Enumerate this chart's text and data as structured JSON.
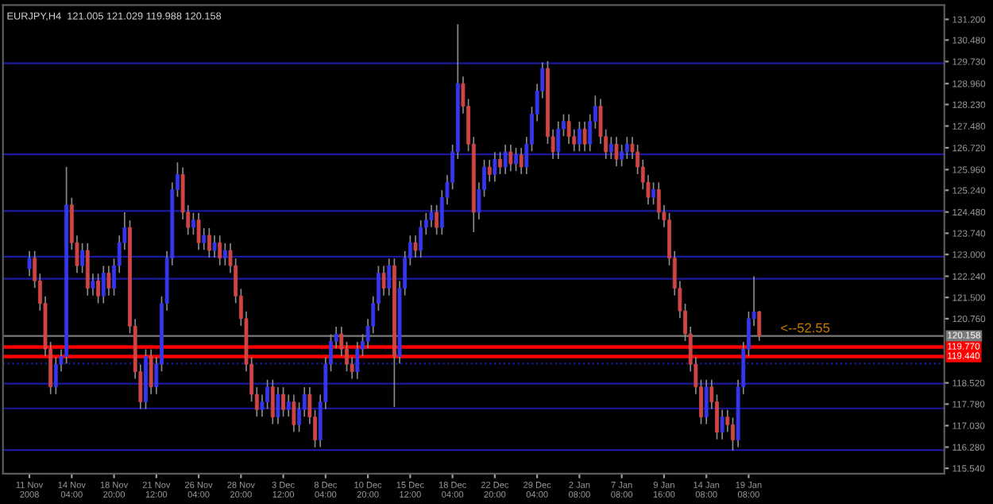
{
  "chart_data": {
    "type": "candlestick",
    "title": "EURJPY,H4  121.005 121.029 119.988 120.158",
    "categories": [
      "11 Nov 2008",
      null,
      null,
      null,
      null,
      null,
      null,
      null,
      "14 Nov 04:00",
      null,
      null,
      null,
      null,
      null,
      null,
      null,
      "18 Nov 20:00",
      null,
      null,
      null,
      null,
      null,
      null,
      null,
      "21 Nov 12:00",
      null,
      null,
      null,
      null,
      null,
      null,
      null,
      "26 Nov 04:00",
      null,
      null,
      null,
      null,
      null,
      null,
      null,
      "28 Nov 20:00",
      null,
      null,
      null,
      null,
      null,
      null,
      null,
      "3 Dec 12:00",
      null,
      null,
      null,
      null,
      null,
      null,
      null,
      "8 Dec 04:00",
      null,
      null,
      null,
      null,
      null,
      null,
      null,
      "10 Dec 20:00",
      null,
      null,
      null,
      null,
      null,
      null,
      null,
      "15 Dec 12:00",
      null,
      null,
      null,
      null,
      null,
      null,
      null,
      "18 Dec 04:00",
      null,
      null,
      null,
      null,
      null,
      null,
      null,
      "22 Dec 20:00",
      null,
      null,
      null,
      null,
      null,
      null,
      null,
      "29 Dec 04:00",
      null,
      null,
      null,
      null,
      null,
      null,
      null,
      "2 Jan 08:00",
      null,
      null,
      null,
      null,
      null,
      null,
      null,
      "7 Jan 08:00",
      null,
      null,
      null,
      null,
      null,
      null,
      null,
      "9 Jan 16:00",
      null,
      null,
      null,
      null,
      null,
      null,
      null,
      "14 Jan 08:00",
      null,
      null,
      null,
      null,
      null,
      null,
      null,
      "19 Jan 08:00",
      null,
      null,
      null,
      null,
      null,
      null,
      null,
      null,
      null,
      null,
      null,
      null,
      null,
      null,
      null,
      null,
      null,
      null,
      null,
      null,
      null,
      null,
      null,
      null,
      null,
      null,
      null,
      null,
      null,
      null,
      null,
      null,
      null,
      null,
      null,
      null
    ],
    "ohlc": [
      [
        122.5,
        123.12,
        122.25,
        122.87
      ],
      [
        122.87,
        123.12,
        121.83,
        122.08
      ],
      [
        122.08,
        122.33,
        121.04,
        121.29
      ],
      [
        121.29,
        121.54,
        119.45,
        119.7
      ],
      [
        119.7,
        119.95,
        118.13,
        118.38
      ],
      [
        118.38,
        119.42,
        118.13,
        119.17
      ],
      [
        119.17,
        119.69,
        118.92,
        119.44
      ],
      [
        119.44,
        126.05,
        119.19,
        124.73
      ],
      [
        124.73,
        124.98,
        123.16,
        123.41
      ],
      [
        123.41,
        123.66,
        122.36,
        122.61
      ],
      [
        122.61,
        123.39,
        122.36,
        123.14
      ],
      [
        123.14,
        123.39,
        121.57,
        121.82
      ],
      [
        121.82,
        122.33,
        121.57,
        122.08
      ],
      [
        122.08,
        122.33,
        121.3,
        121.55
      ],
      [
        121.55,
        122.6,
        121.3,
        122.35
      ],
      [
        122.35,
        122.6,
        121.57,
        121.82
      ],
      [
        121.82,
        122.86,
        121.57,
        122.61
      ],
      [
        122.61,
        123.66,
        122.36,
        123.41
      ],
      [
        123.41,
        124.47,
        123.16,
        123.94
      ],
      [
        123.94,
        124.19,
        120.25,
        120.5
      ],
      [
        120.5,
        120.75,
        118.66,
        118.91
      ],
      [
        118.91,
        119.16,
        117.61,
        117.86
      ],
      [
        117.86,
        119.69,
        117.61,
        119.44
      ],
      [
        119.44,
        119.69,
        118.13,
        118.38
      ],
      [
        118.38,
        119.42,
        118.13,
        119.17
      ],
      [
        119.17,
        121.54,
        118.92,
        121.29
      ],
      [
        121.29,
        123.12,
        121.04,
        122.87
      ],
      [
        122.87,
        125.51,
        122.62,
        125.26
      ],
      [
        125.26,
        126.21,
        125.01,
        125.79
      ],
      [
        125.79,
        126.04,
        124.22,
        124.47
      ],
      [
        124.47,
        124.72,
        123.69,
        123.94
      ],
      [
        123.94,
        124.45,
        123.69,
        124.2
      ],
      [
        124.2,
        124.45,
        123.16,
        123.41
      ],
      [
        123.41,
        123.92,
        123.16,
        123.67
      ],
      [
        123.67,
        123.92,
        122.89,
        123.14
      ],
      [
        123.14,
        123.66,
        122.89,
        123.41
      ],
      [
        123.41,
        123.66,
        122.62,
        122.87
      ],
      [
        122.87,
        123.39,
        122.62,
        123.14
      ],
      [
        123.14,
        123.39,
        122.36,
        122.61
      ],
      [
        122.61,
        122.86,
        121.3,
        121.55
      ],
      [
        121.55,
        121.8,
        120.51,
        120.76
      ],
      [
        120.76,
        121.01,
        118.92,
        119.17
      ],
      [
        119.17,
        119.42,
        117.87,
        118.12
      ],
      [
        118.12,
        118.37,
        117.34,
        117.59
      ],
      [
        117.59,
        118.11,
        117.34,
        117.86
      ],
      [
        117.86,
        118.63,
        117.61,
        118.38
      ],
      [
        118.38,
        118.63,
        117.08,
        117.33
      ],
      [
        117.33,
        118.37,
        117.08,
        118.12
      ],
      [
        118.12,
        118.37,
        117.34,
        117.59
      ],
      [
        117.59,
        118.11,
        117.34,
        117.86
      ],
      [
        117.86,
        118.11,
        116.81,
        117.06
      ],
      [
        117.06,
        117.84,
        116.81,
        117.59
      ],
      [
        117.59,
        118.37,
        117.34,
        118.12
      ],
      [
        118.12,
        118.37,
        117.08,
        117.33
      ],
      [
        117.33,
        117.58,
        116.27,
        116.53
      ],
      [
        116.53,
        118.11,
        116.28,
        117.86
      ],
      [
        117.86,
        119.42,
        117.61,
        119.17
      ],
      [
        119.17,
        120.22,
        118.92,
        119.97
      ],
      [
        119.97,
        120.48,
        119.72,
        120.23
      ],
      [
        120.23,
        120.48,
        119.45,
        119.7
      ],
      [
        119.7,
        119.95,
        118.92,
        119.17
      ],
      [
        119.17,
        119.42,
        118.66,
        118.91
      ],
      [
        118.91,
        119.95,
        118.66,
        119.7
      ],
      [
        119.7,
        120.22,
        119.45,
        119.97
      ],
      [
        119.97,
        120.75,
        119.72,
        120.5
      ],
      [
        120.5,
        121.54,
        120.25,
        121.29
      ],
      [
        121.29,
        122.6,
        121.04,
        122.35
      ],
      [
        122.35,
        122.6,
        121.57,
        121.82
      ],
      [
        121.82,
        122.86,
        121.57,
        122.61
      ],
      [
        122.61,
        122.86,
        117.68,
        119.44
      ],
      [
        119.44,
        122.07,
        119.19,
        121.82
      ],
      [
        121.82,
        123.12,
        121.57,
        122.87
      ],
      [
        122.87,
        123.66,
        122.62,
        123.41
      ],
      [
        123.41,
        123.66,
        122.89,
        123.14
      ],
      [
        123.14,
        124.19,
        122.89,
        123.94
      ],
      [
        123.94,
        124.45,
        123.69,
        124.2
      ],
      [
        124.2,
        124.72,
        123.95,
        124.47
      ],
      [
        124.47,
        124.72,
        123.69,
        123.94
      ],
      [
        123.94,
        125.24,
        123.69,
        124.99
      ],
      [
        124.99,
        125.77,
        124.74,
        125.52
      ],
      [
        125.52,
        126.83,
        125.27,
        126.58
      ],
      [
        126.58,
        131.03,
        126.33,
        128.96
      ],
      [
        128.96,
        129.21,
        127.92,
        128.17
      ],
      [
        128.17,
        128.42,
        126.6,
        126.85
      ],
      [
        126.85,
        127.1,
        123.78,
        124.47
      ],
      [
        124.47,
        125.51,
        124.22,
        125.26
      ],
      [
        125.26,
        126.3,
        125.01,
        126.05
      ],
      [
        126.05,
        126.3,
        125.54,
        125.79
      ],
      [
        125.79,
        126.57,
        125.54,
        126.32
      ],
      [
        126.32,
        126.57,
        125.8,
        126.05
      ],
      [
        126.05,
        126.83,
        125.8,
        126.58
      ],
      [
        126.58,
        126.83,
        125.91,
        126.16
      ],
      [
        126.16,
        126.72,
        125.91,
        126.47
      ],
      [
        126.47,
        126.72,
        125.8,
        126.05
      ],
      [
        126.05,
        127.1,
        125.8,
        126.85
      ],
      [
        126.85,
        128.15,
        126.6,
        127.9
      ],
      [
        127.9,
        128.95,
        127.65,
        128.7
      ],
      [
        128.7,
        129.7,
        128.45,
        129.49
      ],
      [
        129.49,
        129.74,
        126.86,
        127.11
      ],
      [
        127.11,
        127.36,
        126.33,
        126.58
      ],
      [
        126.58,
        127.63,
        126.33,
        127.38
      ],
      [
        127.38,
        127.89,
        127.13,
        127.64
      ],
      [
        127.64,
        127.89,
        126.86,
        127.11
      ],
      [
        127.11,
        127.36,
        126.6,
        126.85
      ],
      [
        126.85,
        127.63,
        126.6,
        127.38
      ],
      [
        127.38,
        127.63,
        126.6,
        126.85
      ],
      [
        126.85,
        127.89,
        126.6,
        127.64
      ],
      [
        127.64,
        128.54,
        127.39,
        128.17
      ],
      [
        128.17,
        128.42,
        126.86,
        127.11
      ],
      [
        127.11,
        127.36,
        126.33,
        126.58
      ],
      [
        126.58,
        127.1,
        126.33,
        126.85
      ],
      [
        126.85,
        127.1,
        126.07,
        126.32
      ],
      [
        126.32,
        126.83,
        126.07,
        126.58
      ],
      [
        126.58,
        127.1,
        126.33,
        126.85
      ],
      [
        126.85,
        127.1,
        126.33,
        126.58
      ],
      [
        126.58,
        126.83,
        125.8,
        126.05
      ],
      [
        126.05,
        126.3,
        125.27,
        125.52
      ],
      [
        125.52,
        125.77,
        124.74,
        124.99
      ],
      [
        124.99,
        125.51,
        124.74,
        125.26
      ],
      [
        125.26,
        125.51,
        124.22,
        124.47
      ],
      [
        124.47,
        124.72,
        123.95,
        124.2
      ],
      [
        124.2,
        124.45,
        122.62,
        122.87
      ],
      [
        122.87,
        123.12,
        121.57,
        121.82
      ],
      [
        121.82,
        122.07,
        120.78,
        121.03
      ],
      [
        121.03,
        121.28,
        119.98,
        120.23
      ],
      [
        120.23,
        120.48,
        118.92,
        119.17
      ],
      [
        119.17,
        119.42,
        118.13,
        118.38
      ],
      [
        118.38,
        118.63,
        117.08,
        117.33
      ],
      [
        117.33,
        118.63,
        117.08,
        118.38
      ],
      [
        118.38,
        118.63,
        117.61,
        117.86
      ],
      [
        117.86,
        118.11,
        116.55,
        116.8
      ],
      [
        116.8,
        117.58,
        116.55,
        117.33
      ],
      [
        117.33,
        117.58,
        116.81,
        117.06
      ],
      [
        117.06,
        117.31,
        116.16,
        116.53
      ],
      [
        116.53,
        118.63,
        116.28,
        118.38
      ],
      [
        118.38,
        119.95,
        118.13,
        119.7
      ],
      [
        119.7,
        121.01,
        119.45,
        120.76
      ],
      [
        120.76,
        122.24,
        120.51,
        121.0
      ],
      [
        121.005,
        121.029,
        119.988,
        120.158
      ],
      null,
      null,
      null,
      null,
      null,
      null,
      null,
      null,
      null,
      null,
      null,
      null,
      null,
      null,
      null,
      null,
      null,
      null,
      null,
      null,
      null,
      null,
      null,
      null,
      null,
      null,
      null,
      null,
      null,
      null,
      null,
      null,
      null,
      null
    ],
    "ylim": [
      115.35,
      131.7
    ],
    "yticks": [
      {
        "value": 131.2,
        "label": "131.200"
      },
      {
        "value": 130.48,
        "label": "130.480"
      },
      {
        "value": 129.73,
        "label": "129.730"
      },
      {
        "value": 128.96,
        "label": "128.960"
      },
      {
        "value": 128.23,
        "label": "128.230"
      },
      {
        "value": 127.48,
        "label": "127.480"
      },
      {
        "value": 126.72,
        "label": "126.720"
      },
      {
        "value": 125.96,
        "label": "125.960"
      },
      {
        "value": 125.24,
        "label": "125.240"
      },
      {
        "value": 124.48,
        "label": "124.480"
      },
      {
        "value": 123.74,
        "label": "123.740"
      },
      {
        "value": 123.0,
        "label": "123.000"
      },
      {
        "value": 122.24,
        "label": "122.240"
      },
      {
        "value": 121.5,
        "label": "121.500"
      },
      {
        "value": 120.76,
        "label": "120.760"
      },
      {
        "value": 118.52,
        "label": "118.520"
      },
      {
        "value": 117.78,
        "label": "117.780"
      },
      {
        "value": 117.03,
        "label": "117.030"
      },
      {
        "value": 116.28,
        "label": "116.280"
      },
      {
        "value": 115.54,
        "label": "115.540"
      }
    ],
    "ref_lines": [
      {
        "axis": "y",
        "value": 120.158,
        "label": "120.158",
        "color": "#7a7a7a"
      },
      {
        "axis": "y",
        "value": 119.77,
        "label": "119.770",
        "color": "#ff0000"
      },
      {
        "axis": "y",
        "value": 119.44,
        "label": "119.440",
        "color": "#ff0000"
      },
      {
        "axis": "y",
        "value": 129.67,
        "color": "#1a1aa0"
      },
      {
        "axis": "y",
        "value": 126.49,
        "color": "#1a1aa0"
      },
      {
        "axis": "y",
        "value": 124.52,
        "color": "#1a1aa0"
      },
      {
        "axis": "y",
        "value": 122.92,
        "color": "#1a1aa0"
      },
      {
        "axis": "y",
        "value": 122.15,
        "color": "#1a1aa0"
      },
      {
        "axis": "y",
        "value": 119.19,
        "color": "#1a1aa0",
        "line_style": "dotted"
      },
      {
        "axis": "y",
        "value": 118.49,
        "color": "#1a1aa0"
      },
      {
        "axis": "y",
        "value": 117.63,
        "color": "#1a1aa0"
      },
      {
        "axis": "y",
        "value": 116.18,
        "color": "#1a1aa0"
      }
    ],
    "annotations": [
      {
        "text": "<--52.55",
        "y": 120.4
      }
    ],
    "grid": false,
    "legend": false
  }
}
